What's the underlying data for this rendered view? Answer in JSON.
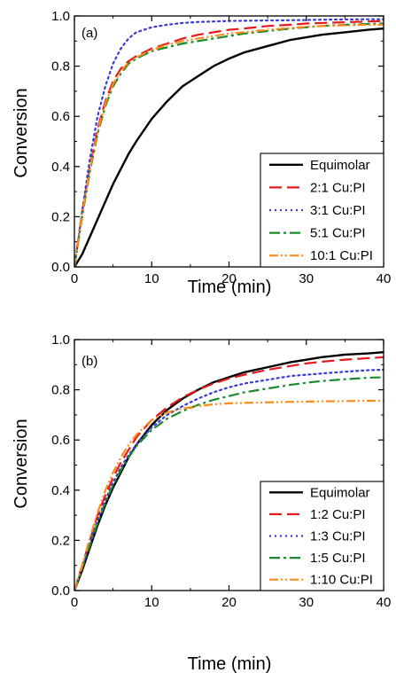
{
  "chart_data": [
    {
      "type": "line",
      "panel_label": "(a)",
      "xlabel": "Time (min)",
      "ylabel": "Conversion",
      "xlim": [
        0,
        40
      ],
      "ylim": [
        0,
        1.0
      ],
      "xticks": [
        "0",
        "10",
        "20",
        "30",
        "40"
      ],
      "yticks": [
        "0.0",
        "0.2",
        "0.4",
        "0.6",
        "0.8",
        "1.0"
      ],
      "legend_position": "bottom-right",
      "x": [
        0,
        1,
        2,
        3,
        4,
        5,
        6,
        7,
        8,
        10,
        12,
        14,
        16,
        18,
        20,
        22,
        25,
        28,
        30,
        32,
        35,
        38,
        40
      ],
      "series": [
        {
          "name": "Equimolar",
          "color": "#000000",
          "dash": "solid",
          "values": [
            0,
            0.05,
            0.12,
            0.19,
            0.26,
            0.33,
            0.39,
            0.45,
            0.5,
            0.59,
            0.66,
            0.72,
            0.76,
            0.8,
            0.83,
            0.855,
            0.88,
            0.905,
            0.915,
            0.925,
            0.935,
            0.945,
            0.95
          ]
        },
        {
          "name": "2:1 Cu:PI",
          "color": "#e41a1c",
          "dash": "dash",
          "values": [
            0,
            0.22,
            0.4,
            0.55,
            0.66,
            0.74,
            0.79,
            0.82,
            0.84,
            0.87,
            0.89,
            0.91,
            0.925,
            0.935,
            0.945,
            0.95,
            0.96,
            0.965,
            0.97,
            0.972,
            0.975,
            0.978,
            0.98
          ]
        },
        {
          "name": "3:1 Cu:PI",
          "color": "#3a3ad8",
          "dash": "dot",
          "values": [
            0,
            0.22,
            0.43,
            0.6,
            0.72,
            0.81,
            0.87,
            0.91,
            0.935,
            0.955,
            0.965,
            0.972,
            0.976,
            0.978,
            0.98,
            0.981,
            0.982,
            0.983,
            0.984,
            0.985,
            0.986,
            0.987,
            0.987
          ]
        },
        {
          "name": "5:1 Cu:PI",
          "color": "#1a8a2e",
          "dash": "dashdot",
          "values": [
            0,
            0.2,
            0.38,
            0.53,
            0.64,
            0.72,
            0.77,
            0.81,
            0.83,
            0.86,
            0.875,
            0.89,
            0.9,
            0.91,
            0.92,
            0.93,
            0.94,
            0.95,
            0.955,
            0.96,
            0.965,
            0.968,
            0.97
          ]
        },
        {
          "name": "10:1 Cu:PI",
          "color": "#ff8c1a",
          "dash": "dashdotdot",
          "values": [
            0,
            0.21,
            0.39,
            0.54,
            0.65,
            0.73,
            0.78,
            0.815,
            0.835,
            0.865,
            0.885,
            0.9,
            0.91,
            0.92,
            0.93,
            0.935,
            0.945,
            0.952,
            0.957,
            0.96,
            0.963,
            0.965,
            0.965
          ]
        }
      ]
    },
    {
      "type": "line",
      "panel_label": "(b)",
      "xlabel": "Time (min)",
      "ylabel": "Conversion",
      "xlim": [
        0,
        40
      ],
      "ylim": [
        0,
        1.0
      ],
      "xticks": [
        "0",
        "10",
        "20",
        "30",
        "40"
      ],
      "yticks": [
        "0.0",
        "0.2",
        "0.4",
        "0.6",
        "0.8",
        "1.0"
      ],
      "legend_position": "bottom-right",
      "x": [
        0,
        1,
        2,
        3,
        4,
        5,
        6,
        7,
        8,
        10,
        12,
        14,
        16,
        18,
        20,
        22,
        25,
        28,
        30,
        32,
        35,
        38,
        40
      ],
      "series": [
        {
          "name": "Equimolar",
          "color": "#000000",
          "dash": "solid",
          "values": [
            0,
            0.08,
            0.17,
            0.26,
            0.34,
            0.41,
            0.47,
            0.53,
            0.58,
            0.66,
            0.72,
            0.765,
            0.8,
            0.83,
            0.85,
            0.87,
            0.89,
            0.91,
            0.92,
            0.93,
            0.94,
            0.945,
            0.95
          ]
        },
        {
          "name": "1:2 Cu:PI",
          "color": "#e41a1c",
          "dash": "dash",
          "values": [
            0,
            0.1,
            0.2,
            0.3,
            0.38,
            0.45,
            0.51,
            0.56,
            0.61,
            0.68,
            0.73,
            0.77,
            0.8,
            0.825,
            0.845,
            0.86,
            0.88,
            0.895,
            0.905,
            0.912,
            0.92,
            0.926,
            0.93
          ]
        },
        {
          "name": "1:3 Cu:PI",
          "color": "#3a3ad8",
          "dash": "dot",
          "values": [
            0,
            0.09,
            0.19,
            0.28,
            0.36,
            0.43,
            0.49,
            0.54,
            0.58,
            0.65,
            0.7,
            0.735,
            0.765,
            0.79,
            0.81,
            0.825,
            0.84,
            0.855,
            0.86,
            0.865,
            0.872,
            0.878,
            0.88
          ]
        },
        {
          "name": "1:5 Cu:PI",
          "color": "#1a8a2e",
          "dash": "dashdot",
          "values": [
            0,
            0.09,
            0.18,
            0.27,
            0.35,
            0.42,
            0.48,
            0.53,
            0.575,
            0.64,
            0.685,
            0.715,
            0.74,
            0.76,
            0.775,
            0.79,
            0.805,
            0.82,
            0.828,
            0.835,
            0.842,
            0.848,
            0.85
          ]
        },
        {
          "name": "1:10 Cu:PI",
          "color": "#ff8c1a",
          "dash": "dashdotdot",
          "values": [
            0,
            0.1,
            0.21,
            0.31,
            0.4,
            0.47,
            0.53,
            0.58,
            0.62,
            0.68,
            0.71,
            0.725,
            0.735,
            0.742,
            0.746,
            0.748,
            0.75,
            0.752,
            0.753,
            0.754,
            0.755,
            0.756,
            0.757
          ]
        }
      ]
    }
  ]
}
